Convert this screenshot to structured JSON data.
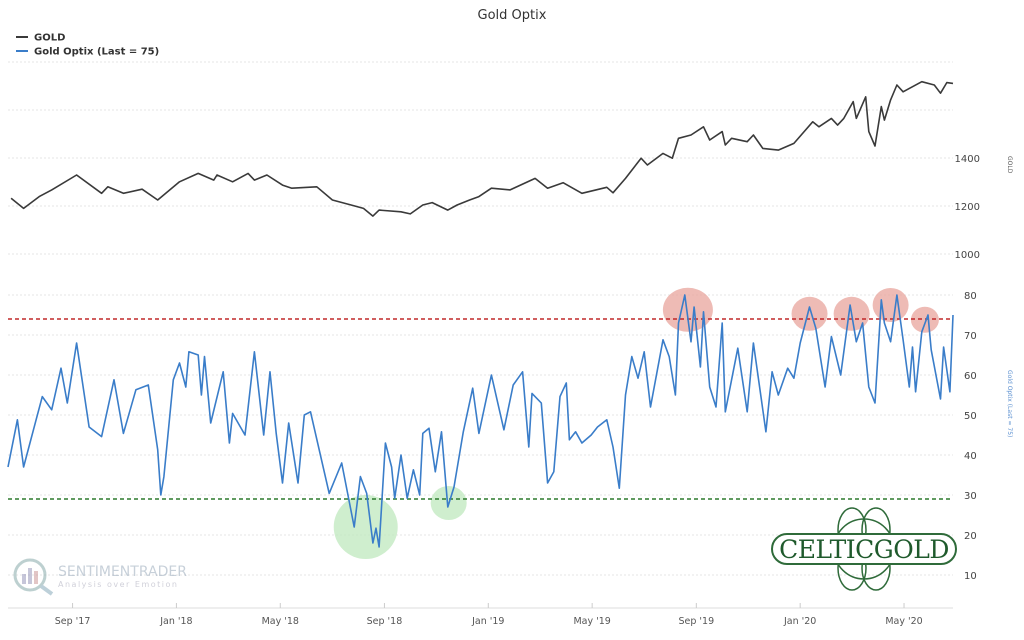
{
  "chart_data": {
    "type": "line",
    "title": "Gold Optix",
    "legend": {
      "placement": "top-left",
      "entries": [
        "GOLD",
        "Gold Optix (Last = 75)"
      ]
    },
    "xlim": [
      2017.46,
      2020.49
    ],
    "x_ticks": [
      {
        "x": 2017.667,
        "label": "Sep '17"
      },
      {
        "x": 2018.0,
        "label": "Jan '18"
      },
      {
        "x": 2018.333,
        "label": "May '18"
      },
      {
        "x": 2018.667,
        "label": "Sep '18"
      },
      {
        "x": 2019.0,
        "label": "Jan '19"
      },
      {
        "x": 2019.333,
        "label": "May '19"
      },
      {
        "x": 2019.667,
        "label": "Sep '19"
      },
      {
        "x": 2020.0,
        "label": "Jan '20"
      },
      {
        "x": 2020.333,
        "label": "May '20"
      }
    ],
    "gold_axis": {
      "label": "GOLD",
      "ticks": [
        "1000",
        "1200",
        "1400"
      ],
      "grid": [
        1000,
        1200,
        1400,
        1600,
        1800
      ]
    },
    "optix_axis": {
      "label": "Gold Optix (Last = 75)",
      "ticks": [
        "10",
        "20",
        "30",
        "40",
        "50",
        "60",
        "70",
        "80"
      ]
    },
    "thresholds": {
      "upper": 74,
      "lower": 29
    },
    "series": [
      {
        "name": "GOLD",
        "color": "#3a3a3a",
        "axis": "gold",
        "x": [
          2017.47,
          2017.51,
          2017.56,
          2017.6,
          2017.68,
          2017.76,
          2017.78,
          2017.83,
          2017.89,
          2017.94,
          2018.01,
          2018.07,
          2018.12,
          2018.13,
          2018.18,
          2018.23,
          2018.25,
          2018.29,
          2018.34,
          2018.37,
          2018.45,
          2018.5,
          2018.56,
          2018.6,
          2018.63,
          2018.65,
          2018.72,
          2018.75,
          2018.79,
          2018.82,
          2018.87,
          2018.9,
          2018.94,
          2018.97,
          2019.01,
          2019.07,
          2019.15,
          2019.19,
          2019.24,
          2019.3,
          2019.38,
          2019.4,
          2019.44,
          2019.49,
          2019.51,
          2019.56,
          2019.59,
          2019.61,
          2019.65,
          2019.69,
          2019.71,
          2019.75,
          2019.76,
          2019.78,
          2019.83,
          2019.85,
          2019.88,
          2019.93,
          2019.98,
          2020.04,
          2020.06,
          2020.1,
          2020.12,
          2020.14,
          2020.17,
          2020.18,
          2020.21,
          2020.22,
          2020.24,
          2020.26,
          2020.27,
          2020.29,
          2020.31,
          2020.33,
          2020.35,
          2020.39,
          2020.43,
          2020.45,
          2020.47,
          2020.49
        ],
        "values": [
          1232,
          1190,
          1239,
          1267,
          1329,
          1253,
          1280,
          1253,
          1270,
          1225,
          1301,
          1336,
          1308,
          1329,
          1301,
          1336,
          1308,
          1329,
          1287,
          1274,
          1280,
          1225,
          1204,
          1190,
          1158,
          1183,
          1176,
          1167,
          1204,
          1214,
          1183,
          1204,
          1225,
          1239,
          1274,
          1267,
          1315,
          1274,
          1297,
          1253,
          1278,
          1255,
          1315,
          1399,
          1371,
          1419,
          1399,
          1482,
          1496,
          1530,
          1475,
          1510,
          1454,
          1482,
          1468,
          1496,
          1440,
          1433,
          1461,
          1551,
          1530,
          1565,
          1537,
          1565,
          1635,
          1565,
          1655,
          1510,
          1450,
          1614,
          1558,
          1642,
          1704,
          1676,
          1690,
          1718,
          1704,
          1670,
          1714,
          1711
        ]
      },
      {
        "name": "Gold Optix (Last = 75)",
        "color": "#3a7dc9",
        "axis": "optix",
        "x": [
          2017.46,
          2017.49,
          2017.51,
          2017.55,
          2017.57,
          2017.6,
          2017.63,
          2017.65,
          2017.68,
          2017.72,
          2017.76,
          2017.8,
          2017.83,
          2017.87,
          2017.91,
          2017.94,
          2017.95,
          2017.96,
          2017.99,
          2018.01,
          2018.03,
          2018.04,
          2018.07,
          2018.08,
          2018.09,
          2018.11,
          2018.15,
          2018.17,
          2018.18,
          2018.22,
          2018.25,
          2018.28,
          2018.3,
          2018.32,
          2018.34,
          2018.36,
          2018.39,
          2018.41,
          2018.43,
          2018.49,
          2018.53,
          2018.57,
          2018.59,
          2018.61,
          2018.63,
          2018.64,
          2018.65,
          2018.67,
          2018.69,
          2018.7,
          2018.72,
          2018.74,
          2018.76,
          2018.78,
          2018.79,
          2018.81,
          2018.83,
          2018.85,
          2018.87,
          2018.89,
          2018.92,
          2018.95,
          2018.97,
          2019.01,
          2019.05,
          2019.08,
          2019.11,
          2019.13,
          2019.14,
          2019.17,
          2019.19,
          2019.21,
          2019.23,
          2019.25,
          2019.26,
          2019.28,
          2019.3,
          2019.33,
          2019.35,
          2019.38,
          2019.4,
          2019.42,
          2019.44,
          2019.46,
          2019.48,
          2019.5,
          2019.52,
          2019.56,
          2019.58,
          2019.6,
          2019.61,
          2019.63,
          2019.65,
          2019.66,
          2019.68,
          2019.69,
          2019.71,
          2019.73,
          2019.75,
          2019.76,
          2019.8,
          2019.83,
          2019.85,
          2019.87,
          2019.89,
          2019.91,
          2019.93,
          2019.96,
          2019.98,
          2020.0,
          2020.03,
          2020.05,
          2020.08,
          2020.1,
          2020.13,
          2020.16,
          2020.18,
          2020.2,
          2020.22,
          2020.24,
          2020.26,
          2020.27,
          2020.29,
          2020.31,
          2020.33,
          2020.35,
          2020.36,
          2020.37,
          2020.39,
          2020.41,
          2020.42,
          2020.45,
          2020.46,
          2020.48,
          2020.49
        ],
        "values": [
          37,
          48.8,
          37,
          48.8,
          54.6,
          51.3,
          61.7,
          53,
          68,
          47,
          44.6,
          58.8,
          45.4,
          56.3,
          57.5,
          41.3,
          30,
          34.6,
          58.8,
          63,
          57,
          65.8,
          65,
          55,
          64.6,
          48,
          60.8,
          43,
          50.4,
          45,
          65.8,
          45,
          60.8,
          45.4,
          33,
          48,
          33,
          50,
          50.8,
          30.4,
          38,
          22,
          34.6,
          30.4,
          18,
          21.7,
          17,
          43,
          37,
          29.2,
          40,
          29.2,
          36.3,
          30,
          45.4,
          46.7,
          35.8,
          45.8,
          27,
          32,
          45.8,
          56.7,
          45.4,
          60,
          46.3,
          57.5,
          60.8,
          42,
          55.4,
          53,
          33,
          35.8,
          54.6,
          58,
          43.8,
          45.8,
          43,
          45,
          47,
          48.8,
          42,
          31.7,
          55,
          64.6,
          59.2,
          65.8,
          52,
          68.8,
          64.6,
          55,
          73,
          80,
          68.3,
          77,
          62,
          75.8,
          57,
          52,
          73,
          50.8,
          66.7,
          50.8,
          68,
          57,
          45.8,
          60.8,
          55,
          61.7,
          59.2,
          68,
          77,
          71.7,
          57,
          69.6,
          60,
          77.5,
          68.3,
          73,
          57,
          53,
          78.8,
          73,
          68.3,
          80,
          68.8,
          57,
          67,
          55.8,
          70.8,
          75,
          66.3,
          54,
          67,
          55.8,
          75
        ]
      }
    ],
    "annotations": [
      {
        "type": "high-circle",
        "color": "#e8a49c",
        "x": 2019.64,
        "y": 76.3,
        "size": "large"
      },
      {
        "type": "high-circle",
        "color": "#e8a49c",
        "x": 2020.03,
        "y": 75.3,
        "size": "medium"
      },
      {
        "type": "high-circle",
        "color": "#e8a49c",
        "x": 2020.165,
        "y": 75.3,
        "size": "medium"
      },
      {
        "type": "high-circle",
        "color": "#e8a49c",
        "x": 2020.29,
        "y": 77.5,
        "size": "medium"
      },
      {
        "type": "high-circle",
        "color": "#e8a49c",
        "x": 2020.4,
        "y": 73.8,
        "size": "small"
      },
      {
        "type": "low-circle",
        "color": "#bfe8bd",
        "x": 2018.607,
        "y": 22,
        "size": "xlarge"
      },
      {
        "type": "low-circle",
        "color": "#bfe8bd",
        "x": 2018.873,
        "y": 28,
        "size": "medium"
      }
    ],
    "colors": {
      "upper": "#c0282a",
      "lower": "#2d7a2d"
    }
  },
  "watermark": {
    "name": "SENTIMENTRADER",
    "tagline": "Analysis over Emotion"
  },
  "logo": {
    "text": "CELTICGOLD"
  }
}
